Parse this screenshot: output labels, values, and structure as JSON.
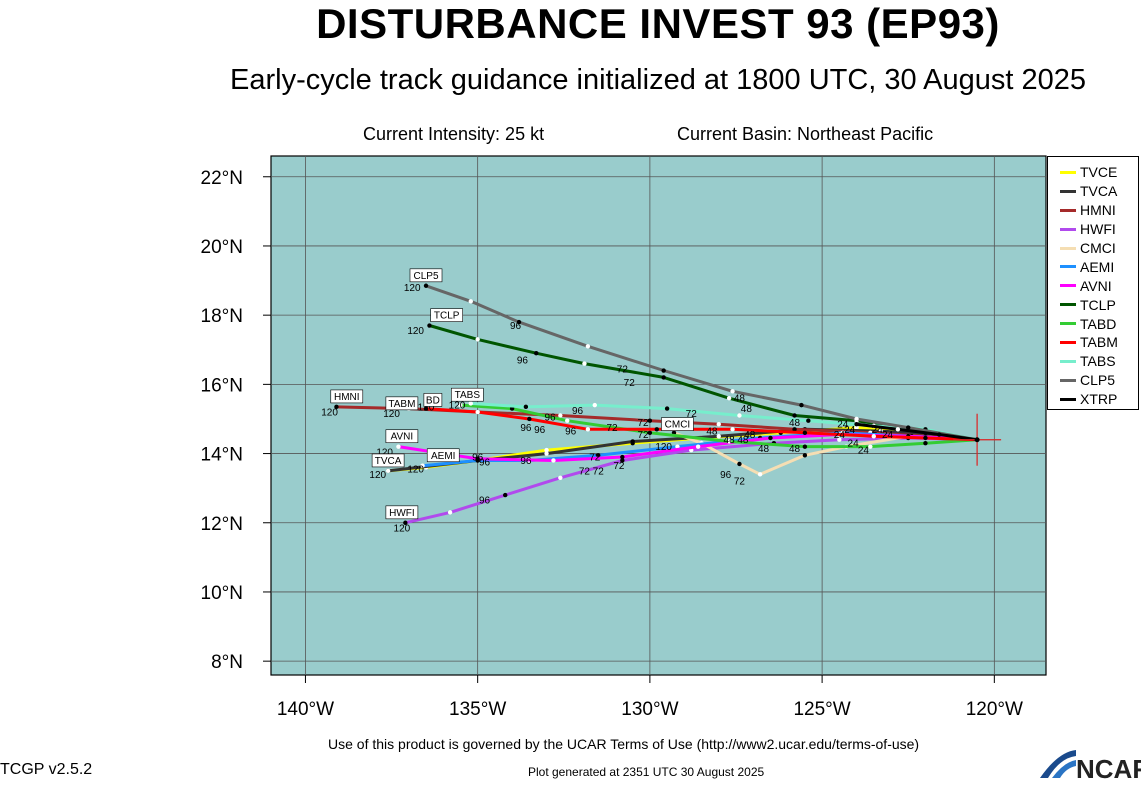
{
  "header": {
    "title": "DISTURBANCE INVEST 93 (EP93)",
    "subtitle": "Early-cycle track guidance initialized at 1800 UTC, 30 August 2025",
    "intensity": "Current Intensity: 25 kt",
    "basin": "Current Basin: Northeast Pacific"
  },
  "footer": {
    "terms": "Use of this product is governed by the UCAR Terms of Use (http://www2.ucar.edu/terms-of-use)",
    "version": "TCGP v2.5.2",
    "generated": "Plot generated at 2351 UTC   30 August 2025",
    "logo": "NCAR"
  },
  "colors": {
    "ocean": "#99cccc",
    "grid": "#555555",
    "storm_marker": "#dd2222"
  },
  "chart_data": {
    "type": "map-track",
    "xlim": [
      -141,
      -118.5
    ],
    "ylim": [
      7.6,
      22.6
    ],
    "grid": true,
    "legend_position": "right",
    "x_ticks": [
      {
        "value": -140,
        "label": "140°W"
      },
      {
        "value": -135,
        "label": "135°W"
      },
      {
        "value": -130,
        "label": "130°W"
      },
      {
        "value": -125,
        "label": "125°W"
      },
      {
        "value": -120,
        "label": "120°W"
      }
    ],
    "y_ticks": [
      {
        "value": 8,
        "label": "8°N"
      },
      {
        "value": 10,
        "label": "10°N"
      },
      {
        "value": 12,
        "label": "12°N"
      },
      {
        "value": 14,
        "label": "14°N"
      },
      {
        "value": 16,
        "label": "16°N"
      },
      {
        "value": 18,
        "label": "18°N"
      },
      {
        "value": 20,
        "label": "20°N"
      },
      {
        "value": 22,
        "label": "22°N"
      }
    ],
    "storm_position": {
      "lon": -120.5,
      "lat": 14.4
    },
    "tracks": [
      {
        "name": "TVCE",
        "color": "#ffff00",
        "points": [
          [
            -120.5,
            14.4
          ],
          [
            -122.2,
            14.6
          ],
          [
            -124.0,
            14.75
          ],
          [
            -126.2,
            14.6
          ],
          [
            -128.5,
            14.45
          ],
          [
            -130.5,
            14.3
          ],
          [
            -133.0,
            14.1
          ],
          [
            -135.0,
            13.8
          ],
          [
            -136.5,
            13.6
          ],
          [
            -137.6,
            13.5
          ]
        ]
      },
      {
        "name": "TVCA",
        "color": "#333333",
        "points": [
          [
            -120.5,
            14.4
          ],
          [
            -121.7,
            14.55
          ],
          [
            -123.3,
            14.65
          ],
          [
            -125.5,
            14.7
          ],
          [
            -128.0,
            14.5
          ],
          [
            -130.5,
            14.35
          ],
          [
            -133.0,
            14.0
          ],
          [
            -135.0,
            13.8
          ],
          [
            -137.6,
            13.5
          ]
        ]
      },
      {
        "name": "HMNI",
        "color": "#a52a2a",
        "points": [
          [
            -120.5,
            14.4
          ],
          [
            -122.0,
            14.5
          ],
          [
            -123.6,
            14.6
          ],
          [
            -125.8,
            14.7
          ],
          [
            -128.0,
            14.85
          ],
          [
            -130.0,
            14.95
          ],
          [
            -132.6,
            15.1
          ],
          [
            -135.0,
            15.2
          ],
          [
            -137.0,
            15.3
          ],
          [
            -139.1,
            15.35
          ]
        ]
      },
      {
        "name": "HWFI",
        "color": "#b14aed",
        "points": [
          [
            -120.5,
            14.4
          ],
          [
            -122.5,
            14.45
          ],
          [
            -124.5,
            14.4
          ],
          [
            -126.4,
            14.3
          ],
          [
            -128.8,
            14.1
          ],
          [
            -130.8,
            13.8
          ],
          [
            -132.6,
            13.3
          ],
          [
            -134.2,
            12.8
          ],
          [
            -135.8,
            12.3
          ],
          [
            -137.1,
            12.0
          ]
        ]
      },
      {
        "name": "CMCI",
        "color": "#f5deb3",
        "points": [
          [
            -120.5,
            14.4
          ],
          [
            -122.5,
            14.5
          ],
          [
            -124.3,
            14.2
          ],
          [
            -125.5,
            13.95
          ],
          [
            -126.8,
            13.4
          ],
          [
            -127.4,
            13.7
          ],
          [
            -128.5,
            14.3
          ],
          [
            -129.3,
            14.6
          ]
        ]
      },
      {
        "name": "AEMI",
        "color": "#1e90ff",
        "points": [
          [
            -120.5,
            14.4
          ],
          [
            -122.4,
            14.5
          ],
          [
            -124.4,
            14.6
          ],
          [
            -126.8,
            14.45
          ],
          [
            -129.2,
            14.2
          ],
          [
            -131.5,
            13.95
          ],
          [
            -133.5,
            13.8
          ],
          [
            -135.0,
            13.8
          ],
          [
            -136.6,
            13.65
          ]
        ]
      },
      {
        "name": "AVNI",
        "color": "#ff00ff",
        "points": [
          [
            -120.5,
            14.4
          ],
          [
            -122.5,
            14.5
          ],
          [
            -124.5,
            14.55
          ],
          [
            -126.5,
            14.45
          ],
          [
            -128.6,
            14.2
          ],
          [
            -130.8,
            13.9
          ],
          [
            -132.8,
            13.8
          ],
          [
            -135.0,
            13.85
          ],
          [
            -137.3,
            14.2
          ]
        ]
      },
      {
        "name": "TCLP",
        "color": "#005500",
        "points": [
          [
            -120.5,
            14.4
          ],
          [
            -122.5,
            14.7
          ],
          [
            -124.0,
            14.95
          ],
          [
            -125.8,
            15.1
          ],
          [
            -127.7,
            15.6
          ],
          [
            -129.6,
            16.2
          ],
          [
            -131.9,
            16.6
          ],
          [
            -133.3,
            16.9
          ],
          [
            -135.0,
            17.3
          ],
          [
            -136.4,
            17.7
          ]
        ]
      },
      {
        "name": "TABD",
        "color": "#33cc33",
        "points": [
          [
            -120.5,
            14.4
          ],
          [
            -122.0,
            14.3
          ],
          [
            -123.6,
            14.2
          ],
          [
            -125.5,
            14.2
          ],
          [
            -127.7,
            14.35
          ],
          [
            -130.0,
            14.6
          ],
          [
            -132.4,
            14.95
          ],
          [
            -134.0,
            15.3
          ],
          [
            -135.5,
            15.4
          ]
        ]
      },
      {
        "name": "TABM",
        "color": "#ff0000",
        "points": [
          [
            -120.5,
            14.4
          ],
          [
            -122.0,
            14.45
          ],
          [
            -123.5,
            14.5
          ],
          [
            -125.5,
            14.6
          ],
          [
            -127.6,
            14.7
          ],
          [
            -129.8,
            14.7
          ],
          [
            -131.8,
            14.7
          ],
          [
            -133.5,
            15.0
          ],
          [
            -135.0,
            15.2
          ],
          [
            -136.5,
            15.3
          ]
        ]
      },
      {
        "name": "TABS",
        "color": "#77eecc",
        "points": [
          [
            -120.5,
            14.4
          ],
          [
            -122.0,
            14.7
          ],
          [
            -123.5,
            14.8
          ],
          [
            -125.4,
            14.95
          ],
          [
            -127.4,
            15.1
          ],
          [
            -129.5,
            15.3
          ],
          [
            -131.6,
            15.4
          ],
          [
            -133.6,
            15.35
          ],
          [
            -135.2,
            15.45
          ]
        ]
      },
      {
        "name": "CLP5",
        "color": "#666666",
        "points": [
          [
            -120.5,
            14.4
          ],
          [
            -122.5,
            14.75
          ],
          [
            -124.0,
            15.0
          ],
          [
            -125.6,
            15.4
          ],
          [
            -127.6,
            15.8
          ],
          [
            -129.6,
            16.4
          ],
          [
            -131.8,
            17.1
          ],
          [
            -133.8,
            17.8
          ],
          [
            -135.2,
            18.4
          ],
          [
            -136.5,
            18.85
          ]
        ]
      },
      {
        "name": "XTRP",
        "color": "#000000",
        "points": [
          [
            -120.5,
            14.4
          ],
          [
            -121.6,
            14.55
          ],
          [
            -122.8,
            14.7
          ],
          [
            -124.0,
            14.85
          ]
        ]
      }
    ],
    "hour_labels": [
      {
        "text": "120",
        "lon": -139.3,
        "lat": 15.1
      },
      {
        "text": "120",
        "lon": -136.9,
        "lat": 18.7
      },
      {
        "text": "120",
        "lon": -136.8,
        "lat": 17.45
      },
      {
        "text": "120",
        "lon": -137.5,
        "lat": 15.05
      },
      {
        "text": "120",
        "lon": -136.5,
        "lat": 15.25
      },
      {
        "text": "120",
        "lon": -135.6,
        "lat": 15.3
      },
      {
        "text": "120",
        "lon": -137.7,
        "lat": 13.95
      },
      {
        "text": "120",
        "lon": -137.9,
        "lat": 13.3
      },
      {
        "text": "120",
        "lon": -136.8,
        "lat": 13.45
      },
      {
        "text": "120",
        "lon": -137.2,
        "lat": 11.75
      },
      {
        "text": "120",
        "lon": -129.6,
        "lat": 14.1
      },
      {
        "text": "96",
        "lon": -133.9,
        "lat": 17.6
      },
      {
        "text": "96",
        "lon": -133.7,
        "lat": 16.6
      },
      {
        "text": "96",
        "lon": -132.1,
        "lat": 15.15
      },
      {
        "text": "96",
        "lon": -133.6,
        "lat": 14.65
      },
      {
        "text": "96",
        "lon": -132.9,
        "lat": 14.95
      },
      {
        "text": "96",
        "lon": -133.2,
        "lat": 14.6
      },
      {
        "text": "96",
        "lon": -132.3,
        "lat": 14.55
      },
      {
        "text": "96",
        "lon": -135.0,
        "lat": 13.8
      },
      {
        "text": "96",
        "lon": -134.8,
        "lat": 13.65
      },
      {
        "text": "96",
        "lon": -133.6,
        "lat": 13.7
      },
      {
        "text": "96",
        "lon": -134.8,
        "lat": 12.55
      },
      {
        "text": "96",
        "lon": -127.8,
        "lat": 13.3
      },
      {
        "text": "72",
        "lon": -130.8,
        "lat": 16.35
      },
      {
        "text": "72",
        "lon": -130.6,
        "lat": 15.95
      },
      {
        "text": "72",
        "lon": -128.8,
        "lat": 15.05
      },
      {
        "text": "72",
        "lon": -131.1,
        "lat": 14.65
      },
      {
        "text": "72",
        "lon": -130.2,
        "lat": 14.8
      },
      {
        "text": "72",
        "lon": -130.2,
        "lat": 14.45
      },
      {
        "text": "72",
        "lon": -131.6,
        "lat": 13.8
      },
      {
        "text": "72",
        "lon": -130.9,
        "lat": 13.55
      },
      {
        "text": "72",
        "lon": -131.5,
        "lat": 13.4
      },
      {
        "text": "72",
        "lon": -131.9,
        "lat": 13.4
      },
      {
        "text": "72",
        "lon": -127.4,
        "lat": 13.1
      },
      {
        "text": "48",
        "lon": -127.4,
        "lat": 15.5
      },
      {
        "text": "48",
        "lon": -127.2,
        "lat": 15.2
      },
      {
        "text": "48",
        "lon": -125.8,
        "lat": 14.8
      },
      {
        "text": "48",
        "lon": -128.2,
        "lat": 14.55
      },
      {
        "text": "48",
        "lon": -127.1,
        "lat": 14.45
      },
      {
        "text": "48",
        "lon": -127.7,
        "lat": 14.3
      },
      {
        "text": "48",
        "lon": -127.3,
        "lat": 14.3
      },
      {
        "text": "48",
        "lon": -126.7,
        "lat": 14.05
      },
      {
        "text": "48",
        "lon": -125.8,
        "lat": 14.05
      },
      {
        "text": "24",
        "lon": -124.4,
        "lat": 14.75
      },
      {
        "text": "24",
        "lon": -124.2,
        "lat": 14.6
      },
      {
        "text": "24",
        "lon": -124.5,
        "lat": 14.45
      },
      {
        "text": "24",
        "lon": -123.4,
        "lat": 14.6
      },
      {
        "text": "24",
        "lon": -123.1,
        "lat": 14.45
      },
      {
        "text": "24",
        "lon": -124.1,
        "lat": 14.2
      },
      {
        "text": "24",
        "lon": -123.8,
        "lat": 14.0
      }
    ],
    "track_labels": [
      {
        "text": "CLP5",
        "lon": -136.5,
        "lat": 19.05
      },
      {
        "text": "TCLP",
        "lon": -135.9,
        "lat": 17.9
      },
      {
        "text": "HMNI",
        "lon": -138.8,
        "lat": 15.55
      },
      {
        "text": "TABM",
        "lon": -137.2,
        "lat": 15.35
      },
      {
        "text": "BD",
        "lon": -136.3,
        "lat": 15.45
      },
      {
        "text": "TABS",
        "lon": -135.3,
        "lat": 15.6
      },
      {
        "text": "CMCI",
        "lon": -129.2,
        "lat": 14.75
      },
      {
        "text": "AVNI",
        "lon": -137.2,
        "lat": 14.4
      },
      {
        "text": "AEMI",
        "lon": -136.0,
        "lat": 13.85
      },
      {
        "text": "TVCA",
        "lon": -137.6,
        "lat": 13.7
      },
      {
        "text": "HWFI",
        "lon": -137.2,
        "lat": 12.2
      }
    ]
  }
}
